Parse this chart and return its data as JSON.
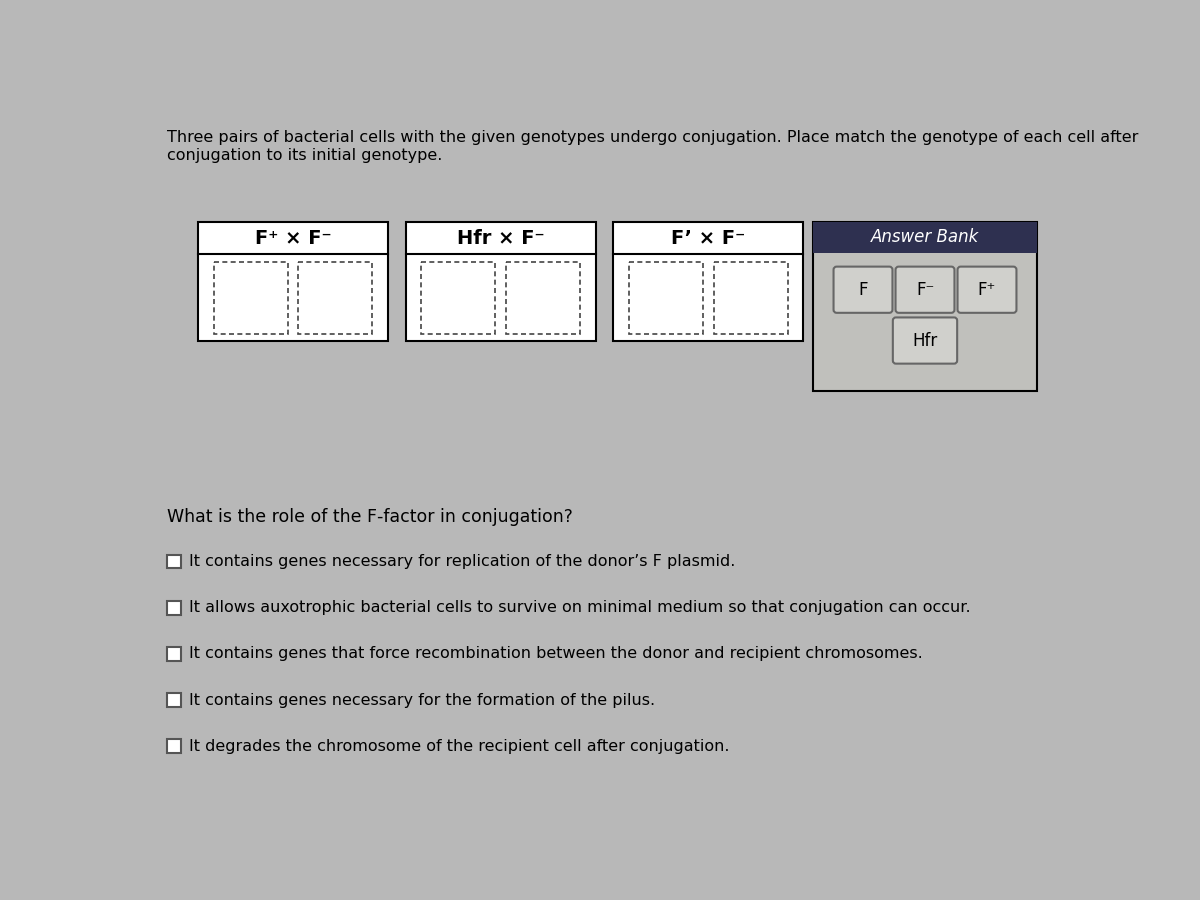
{
  "title_line1": "Three pairs of bacterial cells with the given genotypes undergo conjugation. Place match the genotype of each cell after",
  "title_line2": "conjugation to its initial genotype.",
  "bg_color": "#b8b8b8",
  "pair_box_bg": "#e8e8e4",
  "pairs": [
    {
      "label": "F⁺ × F⁻"
    },
    {
      "label": "Hfr × F⁻"
    },
    {
      "label": "F’ × F⁻"
    }
  ],
  "answer_bank_title": "Answer Bank",
  "answer_bank_title_bg": "#2e3050",
  "answer_bank_title_fg": "white",
  "answer_bank_bg": "#c0c0bc",
  "answer_bank_items_row1": [
    "F",
    "F⁻",
    "F⁺"
  ],
  "answer_bank_items_row2": [
    "Hfr"
  ],
  "question": "What is the role of the F-factor in conjugation?",
  "options": [
    "It contains genes necessary for replication of the donor’s F plasmid.",
    "It allows auxotrophic bacterial cells to survive on minimal medium so that conjugation can occur.",
    "It contains genes that force recombination between the donor and recipient chromosomes.",
    "It contains genes necessary for the formation of the pilus.",
    "It degrades the chromosome of the recipient cell after conjugation."
  ]
}
